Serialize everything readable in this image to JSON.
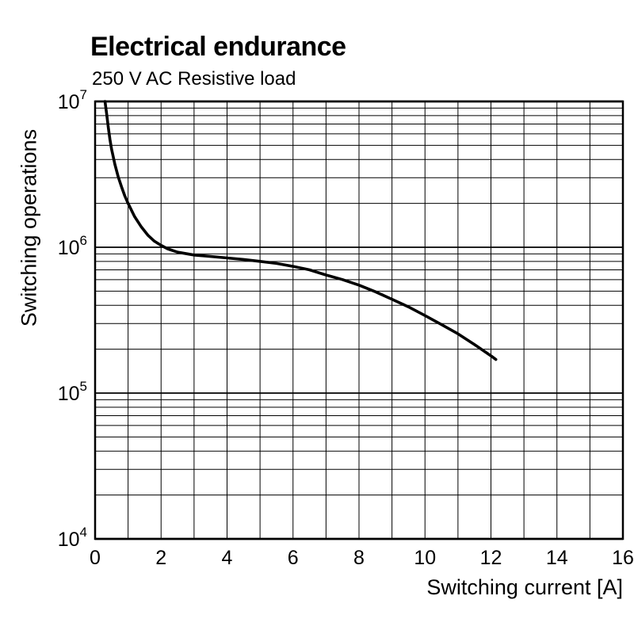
{
  "chart_data": {
    "type": "line",
    "title": "Electrical endurance",
    "subtitle": "250 V AC Resistive load",
    "xlabel": "Switching current [A]",
    "ylabel": "Switching operations",
    "xlim": [
      0,
      16
    ],
    "x_ticks": [
      0,
      2,
      4,
      6,
      8,
      10,
      12,
      14,
      16
    ],
    "x_minor_step": 1,
    "y_scale": "log",
    "ylim_exponents": [
      4,
      7
    ],
    "y_tick_exponents": [
      4,
      5,
      6,
      7
    ],
    "y_tick_base": "10",
    "grid": "both-minor",
    "legend": "none",
    "line_color": "#000000",
    "series": [
      {
        "name": "endurance-curve",
        "points": [
          [
            0.3,
            10000000
          ],
          [
            0.35,
            8200000
          ],
          [
            0.4,
            6600000
          ],
          [
            0.45,
            5500000
          ],
          [
            0.5,
            4700000
          ],
          [
            0.6,
            3700000
          ],
          [
            0.7,
            3050000
          ],
          [
            0.8,
            2600000
          ],
          [
            0.9,
            2250000
          ],
          [
            1.0,
            2000000
          ],
          [
            1.2,
            1620000
          ],
          [
            1.4,
            1380000
          ],
          [
            1.6,
            1210000
          ],
          [
            1.8,
            1100000
          ],
          [
            2.0,
            1030000
          ],
          [
            2.2,
            975000
          ],
          [
            2.5,
            925000
          ],
          [
            3.0,
            885000
          ],
          [
            3.5,
            865000
          ],
          [
            4.0,
            845000
          ],
          [
            4.5,
            825000
          ],
          [
            5.0,
            800000
          ],
          [
            5.5,
            775000
          ],
          [
            6.0,
            740000
          ],
          [
            6.5,
            700000
          ],
          [
            7.0,
            645000
          ],
          [
            7.5,
            600000
          ],
          [
            8.0,
            550000
          ],
          [
            8.5,
            495000
          ],
          [
            9.0,
            440000
          ],
          [
            9.5,
            390000
          ],
          [
            10.0,
            340000
          ],
          [
            10.5,
            295000
          ],
          [
            11.0,
            255000
          ],
          [
            11.5,
            215000
          ],
          [
            12.0,
            180000
          ],
          [
            12.15,
            170000
          ]
        ]
      }
    ]
  }
}
